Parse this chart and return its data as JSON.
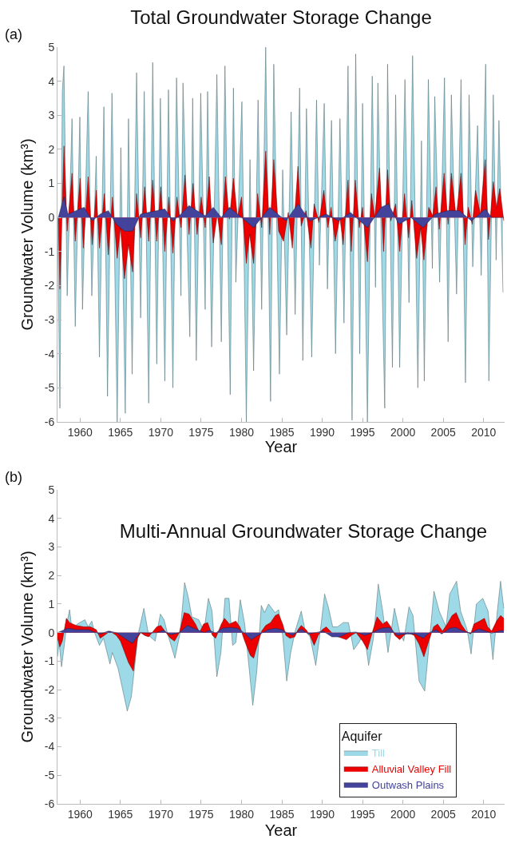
{
  "chart_data": [
    {
      "type": "area",
      "title": "Total Groundwater Storage Change",
      "annotations": [
        "(a)"
      ],
      "xlabel": "Year",
      "ylabel": "Groundwater Volume (km³)",
      "xlim": [
        1957.2,
        2012.6
      ],
      "xticks": [
        1960,
        1965,
        1970,
        1975,
        1980,
        1985,
        1990,
        1995,
        2000,
        2005,
        2010
      ],
      "ylim": [
        -6,
        5
      ],
      "yticks": [
        -6,
        -5,
        -4,
        -3,
        -2,
        -1,
        0,
        1,
        2,
        3,
        4,
        5
      ],
      "legend": false,
      "series": [
        {
          "color": "#9dd9e6",
          "x": [
            1957.2,
            1957.5,
            1957.8,
            1958.0,
            1958.4,
            1959.0,
            1959.4,
            1959.97,
            1960.3,
            1961.0,
            1961.45,
            1962.0,
            1962.4,
            1962.95,
            1963.4,
            1963.95,
            1964.6,
            1965.05,
            1965.6,
            1966.0,
            1966.45,
            1967.0,
            1967.5,
            1967.95,
            1968.5,
            1969.0,
            1969.5,
            1969.95,
            1970.5,
            1970.95,
            1971.5,
            1971.95,
            1972.5,
            1972.75,
            1973.6,
            1973.95,
            1974.4,
            1974.95,
            1975.5,
            1975.8,
            1976.3,
            1976.95,
            1977.5,
            1977.95,
            1978.6,
            1979.0,
            1979.3,
            1980.05,
            1980.6,
            1981.05,
            1981.5,
            1982.05,
            1982.5,
            1983.0,
            1983.6,
            1984.0,
            1984.7,
            1985.1,
            1985.6,
            1986.15,
            1986.65,
            1987.2,
            1987.6,
            1988.05,
            1988.7,
            1989.3,
            1989.65,
            1990.25,
            1990.65,
            1991.15,
            1991.65,
            1992.2,
            1992.7,
            1993.2,
            1993.7,
            1994.15,
            1994.65,
            1995.0,
            1995.6,
            1996.2,
            1996.6,
            1996.9,
            1997.75,
            1998.1,
            1998.7,
            1999.1,
            1999.6,
            2000.25,
            2000.75,
            2001.2,
            2001.85,
            2002.3,
            2002.65,
            2003.15,
            2003.65,
            2003.95,
            2004.55,
            2005.15,
            2005.6,
            2006.0,
            2006.65,
            2007.2,
            2007.75,
            2008.2,
            2008.65,
            2009.25,
            2009.7,
            2010.25,
            2010.65,
            2011.2,
            2011.55,
            2011.9,
            2012.4
          ],
          "values": [
            0,
            -5.6,
            3.7,
            4.45,
            -2.3,
            2.9,
            -3.2,
            2.95,
            -2.7,
            3.7,
            -2.3,
            1.8,
            -4.1,
            3.25,
            -5.25,
            3.65,
            -6,
            2.05,
            -5.75,
            2.9,
            -4.6,
            4.25,
            -2.95,
            3.7,
            -5.45,
            4.55,
            -4.3,
            3.5,
            -4.8,
            3.75,
            -5.0,
            4.1,
            -2.3,
            3.95,
            -3.5,
            3.5,
            -4.2,
            3.65,
            -2.7,
            3.7,
            -3.8,
            4.2,
            -3.65,
            4.45,
            -5.2,
            3.8,
            -1.9,
            3.4,
            -6,
            1.7,
            -4.5,
            3.45,
            -2.7,
            5.0,
            -5.4,
            4.5,
            -4.6,
            1.4,
            -3.45,
            3.1,
            -2.85,
            3.8,
            -4.2,
            3.2,
            -4.1,
            3.45,
            -1.4,
            3.35,
            -2.1,
            2.85,
            -4.0,
            2.9,
            -3.1,
            4.45,
            -5.95,
            4.8,
            -4.0,
            3.35,
            -6,
            4.15,
            -2.05,
            3.95,
            -5.6,
            4.5,
            -4.4,
            3.6,
            -4.4,
            4.05,
            -2.5,
            4.75,
            -5.0,
            2.25,
            -4.8,
            4.05,
            -1.5,
            3.55,
            -1.9,
            4.1,
            -3.65,
            3.6,
            -2.25,
            4.05,
            -4.85,
            3.6,
            -1.45,
            2.7,
            -1.7,
            4.5,
            -4.8,
            3.6,
            -1.25,
            2.85,
            -2.2
          ]
        },
        {
          "color": "#ec0000",
          "x": [
            1957.3,
            1957.5,
            1958.0,
            1958.4,
            1959.0,
            1959.4,
            1960.0,
            1960.4,
            1961.0,
            1961.5,
            1962.0,
            1962.4,
            1963.0,
            1963.5,
            1964.0,
            1964.6,
            1965.0,
            1965.5,
            1966.0,
            1966.5,
            1967.0,
            1967.5,
            1968.0,
            1968.5,
            1969.0,
            1969.5,
            1970.0,
            1970.5,
            1971.0,
            1971.5,
            1972.0,
            1972.5,
            1973.0,
            1973.5,
            1974.0,
            1974.5,
            1975.0,
            1975.5,
            1976.0,
            1976.5,
            1977.0,
            1977.5,
            1978.0,
            1978.5,
            1979.0,
            1979.5,
            1980.0,
            1980.6,
            1981.0,
            1981.5,
            1982.0,
            1982.5,
            1983.0,
            1983.5,
            1984.0,
            1984.6,
            1985.2,
            1985.8,
            1986.3,
            1987.0,
            1987.4,
            1988.0,
            1988.6,
            1989.0,
            1989.6,
            1990.2,
            1990.7,
            1991.1,
            1991.6,
            1992.2,
            1992.6,
            1993.2,
            1993.6,
            1994.1,
            1994.6,
            1995.0,
            1995.6,
            1996.1,
            1996.5,
            1997.1,
            1997.6,
            1998.1,
            1998.5,
            1999.1,
            1999.6,
            2000.2,
            2000.7,
            2001.1,
            2001.7,
            2002.2,
            2002.6,
            2003.2,
            2003.7,
            2004.1,
            2004.5,
            2005.1,
            2005.6,
            2006.0,
            2006.6,
            2007.2,
            2007.7,
            2008.1,
            2008.6,
            2009.0,
            2009.6,
            2010.2,
            2010.6,
            2011.2,
            2011.6,
            2012.0,
            2012.5
          ],
          "values": [
            0,
            -2.1,
            2.1,
            -0.4,
            1.3,
            -0.7,
            1.15,
            -0.9,
            1.2,
            -0.8,
            0.8,
            -0.9,
            0.7,
            -1.1,
            0.6,
            -1.2,
            -0.3,
            -1.8,
            -0.8,
            -1.6,
            0.7,
            -0.6,
            0.9,
            -0.7,
            1.1,
            -0.7,
            0.9,
            -1.0,
            0.6,
            -1.05,
            0.6,
            -0.3,
            1.25,
            -0.5,
            1.0,
            -0.5,
            0.6,
            -0.3,
            1.2,
            -0.75,
            0.1,
            -0.8,
            1.2,
            -0.05,
            1.15,
            0,
            0.6,
            -1.35,
            -0.5,
            -1.35,
            0.7,
            -0.3,
            1.95,
            -0.5,
            1.7,
            -0.4,
            -0.7,
            0.15,
            -0.9,
            1.5,
            -0.25,
            0.2,
            -0.9,
            0.4,
            -0.15,
            0.8,
            -0.3,
            0.3,
            -0.7,
            0,
            -0.8,
            1.1,
            -1.0,
            1.1,
            -0.3,
            0.3,
            -1.3,
            0.7,
            0,
            1.45,
            -1.0,
            1.4,
            -0.1,
            0.4,
            -1.0,
            0.7,
            -0.6,
            0.5,
            -1.2,
            -0.3,
            -1.25,
            0.3,
            0.05,
            0.9,
            -0.35,
            1.3,
            -0.2,
            1.3,
            0,
            1.3,
            -0.8,
            0.3,
            -0.2,
            0.8,
            0.1,
            1.7,
            -0.65,
            1.05,
            0.3,
            0.85,
            -0.1
          ]
        },
        {
          "color": "#43439b",
          "x": [
            1957.3,
            1958.0,
            1958.5,
            1959.5,
            1960.5,
            1961.5,
            1962.5,
            1963.5,
            1964.5,
            1965.5,
            1966.5,
            1967.5,
            1968.5,
            1969.5,
            1970.5,
            1971.5,
            1972.5,
            1973.5,
            1974.5,
            1975.5,
            1976.5,
            1977.5,
            1978.5,
            1979.5,
            1980.5,
            1981.5,
            1982.5,
            1983.5,
            1984.5,
            1985.5,
            1987.0,
            1988.5,
            1990.5,
            1992.0,
            1993.5,
            1995.6,
            1997.3,
            1998.2,
            1999.5,
            2001.0,
            2002.5,
            2004.0,
            2005.5,
            2007.0,
            2008.5,
            2010.2,
            2011.0,
            2012.5
          ],
          "values": [
            0,
            0.6,
            0.1,
            0.2,
            0.3,
            -0.1,
            0.1,
            0.2,
            -0.2,
            -0.4,
            -0.4,
            0.1,
            0.15,
            0.2,
            0.25,
            -0.1,
            0.1,
            0.35,
            0.2,
            0.05,
            0.3,
            0,
            0.3,
            0.1,
            -0.1,
            -0.3,
            0,
            0.3,
            0.1,
            -0.1,
            0.4,
            -0.1,
            0.1,
            -0.1,
            0.15,
            -0.3,
            0.3,
            0.4,
            -0.2,
            0,
            -0.3,
            0.1,
            0.2,
            0.2,
            -0.1,
            0.25,
            0,
            0
          ]
        }
      ]
    },
    {
      "type": "area",
      "title": "Multi-Annual Groundwater Storage Change",
      "annotations": [
        "(b)"
      ],
      "xlabel": "Year",
      "ylabel": "Groundwater Volume (km³)",
      "xlim": [
        1957.2,
        2012.6
      ],
      "xticks": [
        1960,
        1965,
        1970,
        1975,
        1980,
        1985,
        1990,
        1995,
        2000,
        2005,
        2010
      ],
      "ylim": [
        -6,
        5
      ],
      "yticks": [
        -6,
        -5,
        -4,
        -3,
        -2,
        -1,
        0,
        1,
        2,
        3,
        4,
        5
      ],
      "legend": "bottom right",
      "legend_title": "Aquifer",
      "series": [
        {
          "name": "Till",
          "color": "#9dd9e6",
          "x": [
            1957.2,
            1957.4,
            1957.7,
            1958.0,
            1958.35,
            1958.7,
            1959.0,
            1959.65,
            1960.6,
            1961.0,
            1961.45,
            1961.8,
            1962.4,
            1962.9,
            1963.7,
            1964.0,
            1964.7,
            1965.85,
            1966.35,
            1967.2,
            1967.9,
            1968.5,
            1969.3,
            1969.95,
            1970.4,
            1970.9,
            1971.75,
            1972.4,
            1972.95,
            1973.4,
            1973.85,
            1974.7,
            1975.35,
            1975.9,
            1976.35,
            1976.95,
            1977.45,
            1977.95,
            1978.45,
            1978.9,
            1979.3,
            1979.85,
            1980.4,
            1981.4,
            1981.9,
            1982.45,
            1982.85,
            1983.35,
            1984.15,
            1984.6,
            1985.1,
            1985.6,
            1986.1,
            1986.7,
            1987.4,
            1987.9,
            1988.5,
            1989.2,
            1989.7,
            1990.3,
            1990.8,
            1991.3,
            1991.9,
            1992.6,
            1993.25,
            1993.9,
            1994.55,
            1995.2,
            1995.75,
            1996.35,
            1996.95,
            1997.5,
            1998.15,
            1998.95,
            1999.6,
            2000.1,
            2000.75,
            2001.25,
            2002.0,
            2002.7,
            2003.05,
            2003.85,
            2004.5,
            2005.35,
            2005.8,
            2006.65,
            2007.15,
            2007.95,
            2008.45,
            2009.1,
            2009.9,
            2010.55,
            2011.15,
            2011.7,
            2012.1,
            2012.5
          ],
          "values": [
            -0.85,
            -0.35,
            -1.2,
            -0.55,
            0.3,
            0.8,
            0.1,
            0.3,
            0.45,
            0.2,
            0.4,
            0,
            -0.45,
            -0.2,
            -1.1,
            -0.7,
            -1.25,
            -2.75,
            -2.25,
            -0.05,
            0.85,
            -0.1,
            -0.3,
            0.65,
            0.45,
            -0.1,
            -0.9,
            0,
            1.75,
            1.25,
            0.55,
            0.45,
            0.05,
            1.2,
            0.75,
            -1.55,
            -0.7,
            1.2,
            1.2,
            -0.45,
            -0.35,
            1.15,
            0.3,
            -2.55,
            -1.35,
            0.95,
            0.7,
            1.0,
            0.7,
            0.8,
            -0.1,
            -1.7,
            -0.7,
            0.1,
            0.75,
            0.05,
            -0.15,
            -1.15,
            -0.1,
            1.35,
            0.85,
            0.2,
            0.2,
            0.35,
            0.35,
            -0.6,
            -0.35,
            0,
            -1.15,
            -0.2,
            1.7,
            0.75,
            -0.7,
            0.85,
            0,
            -0.3,
            0.9,
            0.6,
            -1.7,
            -2.05,
            -1.0,
            1.45,
            0.75,
            0.2,
            1.35,
            1.8,
            0.75,
            0.1,
            -0.75,
            1.0,
            1.2,
            0.75,
            -0.95,
            0.75,
            1.8,
            0.85
          ]
        },
        {
          "name": "Alluvial Valley Fill",
          "color": "#ec0000",
          "x": [
            1957.2,
            1957.5,
            1957.8,
            1958.3,
            1958.7,
            1959.5,
            1960.5,
            1961.3,
            1962.0,
            1962.5,
            1963.0,
            1963.7,
            1964.5,
            1965.0,
            1966.0,
            1966.6,
            1967.1,
            1967.5,
            1968.0,
            1968.5,
            1969.5,
            1970.0,
            1970.5,
            1971.2,
            1971.7,
            1972.3,
            1972.9,
            1973.5,
            1974.3,
            1974.8,
            1975.3,
            1975.8,
            1976.4,
            1976.8,
            1977.5,
            1977.9,
            1978.5,
            1979.3,
            1979.8,
            1980.4,
            1981.1,
            1981.5,
            1982.0,
            1982.5,
            1983.0,
            1983.6,
            1984.2,
            1984.6,
            1985.1,
            1985.5,
            1986.0,
            1986.6,
            1987.0,
            1987.4,
            1988.0,
            1988.5,
            1989.0,
            1989.5,
            1990.0,
            1990.5,
            1991.0,
            1991.5,
            1992.0,
            1992.5,
            1993.0,
            1993.6,
            1994.2,
            1995.0,
            1995.6,
            1996.2,
            1996.8,
            1997.5,
            1998.0,
            1998.5,
            1999.0,
            1999.6,
            2000.1,
            2000.6,
            2001.4,
            2002.0,
            2002.6,
            2003.2,
            2003.8,
            2004.3,
            2004.9,
            2005.5,
            2006.1,
            2006.6,
            2007.2,
            2007.8,
            2008.4,
            2008.8,
            2009.5,
            2010.1,
            2010.5,
            2011.0,
            2011.6,
            2012.1,
            2012.5
          ],
          "values": [
            -0.2,
            -0.5,
            -0.3,
            0.5,
            0.35,
            0.25,
            0.2,
            0.2,
            0.1,
            -0.2,
            -0.1,
            0.05,
            -0.1,
            -0.3,
            -1.05,
            -1.35,
            -0.2,
            0,
            -0.1,
            -0.15,
            0.2,
            0.25,
            0.05,
            -0.2,
            -0.3,
            0,
            0.7,
            0.65,
            0.3,
            0,
            0.3,
            0.35,
            -0.1,
            -0.2,
            0.3,
            0.5,
            0.3,
            0.4,
            0.2,
            -0.3,
            -0.8,
            -0.9,
            -0.4,
            0.05,
            0.25,
            0.35,
            0.6,
            0.65,
            0.3,
            -0.1,
            -0.2,
            -0.15,
            0.1,
            0.25,
            0.1,
            -0.1,
            -0.45,
            -0.1,
            0.1,
            0.2,
            0.05,
            -0.1,
            -0.15,
            -0.2,
            -0.25,
            -0.1,
            0,
            -0.3,
            -0.6,
            0,
            0.55,
            0.3,
            0.4,
            0.2,
            -0.1,
            -0.25,
            -0.1,
            0,
            -0.1,
            -0.4,
            -0.85,
            -0.3,
            0.2,
            0.3,
            0.05,
            0.3,
            0.6,
            0.7,
            0.3,
            0.05,
            -0.05,
            0.3,
            0.4,
            0.5,
            0.2,
            0.05,
            0.4,
            0.6,
            0.5
          ]
        },
        {
          "name": "Outwash Plains",
          "color": "#43439b",
          "x": [
            1957.2,
            1958.5,
            1959.5,
            1961.0,
            1962.5,
            1963.5,
            1964.5,
            1965.5,
            1966.5,
            1967.4,
            1968.5,
            1969.5,
            1970.3,
            1971.2,
            1972.3,
            1973.3,
            1974.5,
            1975.4,
            1976.0,
            1976.8,
            1977.6,
            1978.5,
            1979.5,
            1980.3,
            1981.2,
            1982.3,
            1983.3,
            1984.2,
            1985.0,
            1985.6,
            1986.3,
            1987.4,
            1988.3,
            1989.2,
            1990.1,
            1991.2,
            1992.2,
            1993.3,
            1994.2,
            1995.3,
            1996.2,
            1997.3,
            1998.3,
            1999.3,
            2000.3,
            2001.5,
            2002.5,
            2003.3,
            2004.1,
            2004.8,
            2005.8,
            2006.5,
            2007.5,
            2008.4,
            2009.4,
            2010.3,
            2011.0,
            2012.3,
            2012.5
          ],
          "values": [
            0,
            0.15,
            0.1,
            0.1,
            -0.05,
            0.05,
            0,
            -0.2,
            -0.38,
            0,
            -0.02,
            0,
            0.08,
            -0.08,
            0,
            0.25,
            0.1,
            0,
            0.08,
            -0.02,
            0.15,
            0.18,
            0.15,
            0,
            -0.25,
            -0.05,
            0.1,
            0.15,
            0.1,
            0,
            -0.1,
            0.12,
            -0.05,
            0,
            0.05,
            -0.15,
            -0.15,
            0,
            0.02,
            -0.1,
            0,
            0.15,
            0.18,
            -0.1,
            -0.05,
            -0.05,
            -0.2,
            0,
            0.1,
            -0.05,
            0.15,
            0.18,
            0.05,
            -0.02,
            0.13,
            0.05,
            -0.02,
            0.08,
            0.05
          ]
        }
      ]
    }
  ]
}
